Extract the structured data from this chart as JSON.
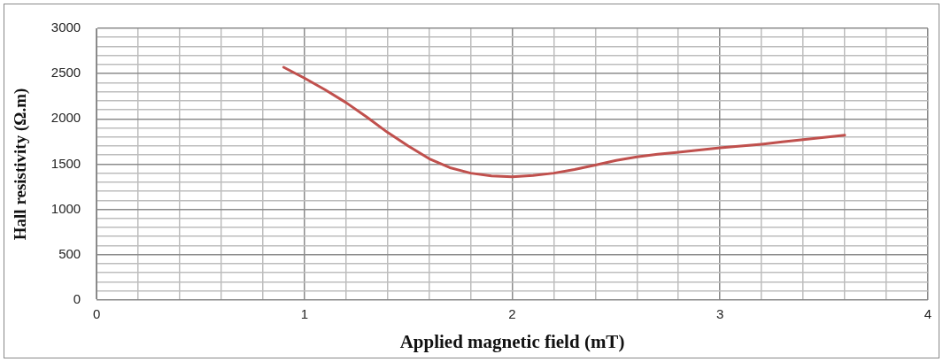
{
  "chart_data": {
    "type": "line",
    "xlabel": "Applied magnetic field (mT)",
    "ylabel": "Hall resistivity (Ω.m)",
    "x": [
      0.9,
      1.0,
      1.1,
      1.2,
      1.3,
      1.4,
      1.5,
      1.6,
      1.7,
      1.8,
      1.9,
      2.0,
      2.1,
      2.2,
      2.3,
      2.4,
      2.5,
      2.6,
      2.7,
      2.8,
      2.9,
      3.0,
      3.1,
      3.2,
      3.3,
      3.4,
      3.5,
      3.6
    ],
    "series": [
      {
        "color": "#c0504d",
        "values": [
          2570,
          2450,
          2320,
          2180,
          2020,
          1850,
          1700,
          1560,
          1460,
          1400,
          1370,
          1360,
          1375,
          1400,
          1440,
          1490,
          1540,
          1580,
          1610,
          1630,
          1655,
          1680,
          1700,
          1720,
          1745,
          1770,
          1795,
          1820
        ]
      }
    ],
    "xlim": [
      0,
      4
    ],
    "xticks": [
      0,
      {
        "value": 0.2,
        "label": null
      },
      {
        "value": 0.4,
        "label": null
      },
      {
        "value": 0.6,
        "label": null
      },
      {
        "value": 0.8,
        "label": null
      },
      1,
      {
        "value": 1.2,
        "label": null
      },
      {
        "value": 1.4,
        "label": null
      },
      {
        "value": 1.6,
        "label": null
      },
      {
        "value": 1.8,
        "label": null
      },
      2,
      {
        "value": 2.2,
        "label": null
      },
      {
        "value": 2.4,
        "label": null
      },
      {
        "value": 2.6,
        "label": null
      },
      {
        "value": 2.8,
        "label": null
      },
      3,
      {
        "value": 3.2,
        "label": null
      },
      {
        "value": 3.4,
        "label": null
      },
      {
        "value": 3.6,
        "label": null
      },
      {
        "value": 3.8,
        "label": null
      },
      4
    ],
    "ylim": [
      0,
      3000
    ],
    "yticks": [
      0,
      {
        "value": 100,
        "label": null
      },
      {
        "value": 200,
        "label": null
      },
      {
        "value": 300,
        "label": null
      },
      {
        "value": 400,
        "label": null
      },
      500,
      {
        "value": 600,
        "label": null
      },
      {
        "value": 700,
        "label": null
      },
      {
        "value": 800,
        "label": null
      },
      {
        "value": 900,
        "label": null
      },
      1000,
      {
        "value": 1100,
        "label": null
      },
      {
        "value": 1200,
        "label": null
      },
      {
        "value": 1300,
        "label": null
      },
      {
        "value": 1400,
        "label": null
      },
      1500,
      {
        "value": 1600,
        "label": null
      },
      {
        "value": 1700,
        "label": null
      },
      {
        "value": 1800,
        "label": null
      },
      {
        "value": 1900,
        "label": null
      },
      2000,
      {
        "value": 2100,
        "label": null
      },
      {
        "value": 2200,
        "label": null
      },
      {
        "value": 2300,
        "label": null
      },
      {
        "value": 2400,
        "label": null
      },
      2500,
      {
        "value": 2600,
        "label": null
      },
      {
        "value": 2700,
        "label": null
      },
      {
        "value": 2800,
        "label": null
      },
      {
        "value": 2900,
        "label": null
      },
      3000
    ],
    "grid": true,
    "marker": "none",
    "line_style": "solid"
  }
}
